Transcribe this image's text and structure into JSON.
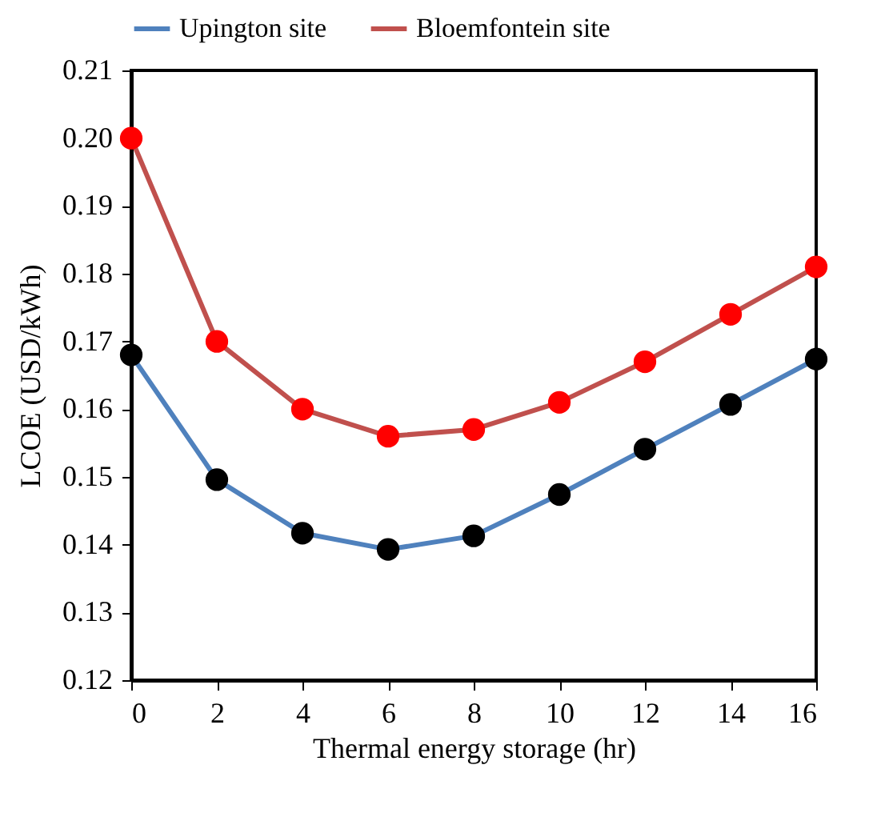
{
  "chart_data": {
    "type": "line",
    "xlabel": "Thermal energy storage (hr)",
    "ylabel": "LCOE (USD/kWh)",
    "x": [
      0,
      2,
      4,
      6,
      8,
      10,
      12,
      14,
      16
    ],
    "series": [
      {
        "name": "Upington site",
        "color": "#4f81bd",
        "colors": [
          "#000000",
          "#000000",
          "#000000",
          "#000000",
          "#000000",
          "#000000",
          "#000000",
          "#000000",
          "#000000"
        ],
        "values": [
          0.168,
          0.1496,
          0.1417,
          0.1393,
          0.1413,
          0.1474,
          0.1541,
          0.1607,
          0.1674
        ]
      },
      {
        "name": "Bloemfontein site",
        "color": "#c0504d",
        "colors": [
          "#ff0000",
          "#ff0000",
          "#ff0000",
          "#ff0000",
          "#ff0000",
          "#ff0000",
          "#ff0000",
          "#ff0000",
          "#ff0000"
        ],
        "values": [
          0.2,
          0.17,
          0.16,
          0.156,
          0.157,
          0.161,
          0.167,
          0.174,
          0.181
        ]
      }
    ],
    "xlim": [
      0,
      16
    ],
    "xticks": [
      0,
      2,
      4,
      6,
      8,
      10,
      12,
      14,
      16
    ],
    "ylim": [
      0.12,
      0.21
    ],
    "yticks": [
      0.12,
      0.13,
      0.14,
      0.15,
      0.16,
      0.17,
      0.18,
      0.19,
      {
        "value": 0.2,
        "label": "0.20"
      },
      0.21
    ],
    "grid": false,
    "legend": "top",
    "marker": "circle",
    "line_style": "solid"
  }
}
